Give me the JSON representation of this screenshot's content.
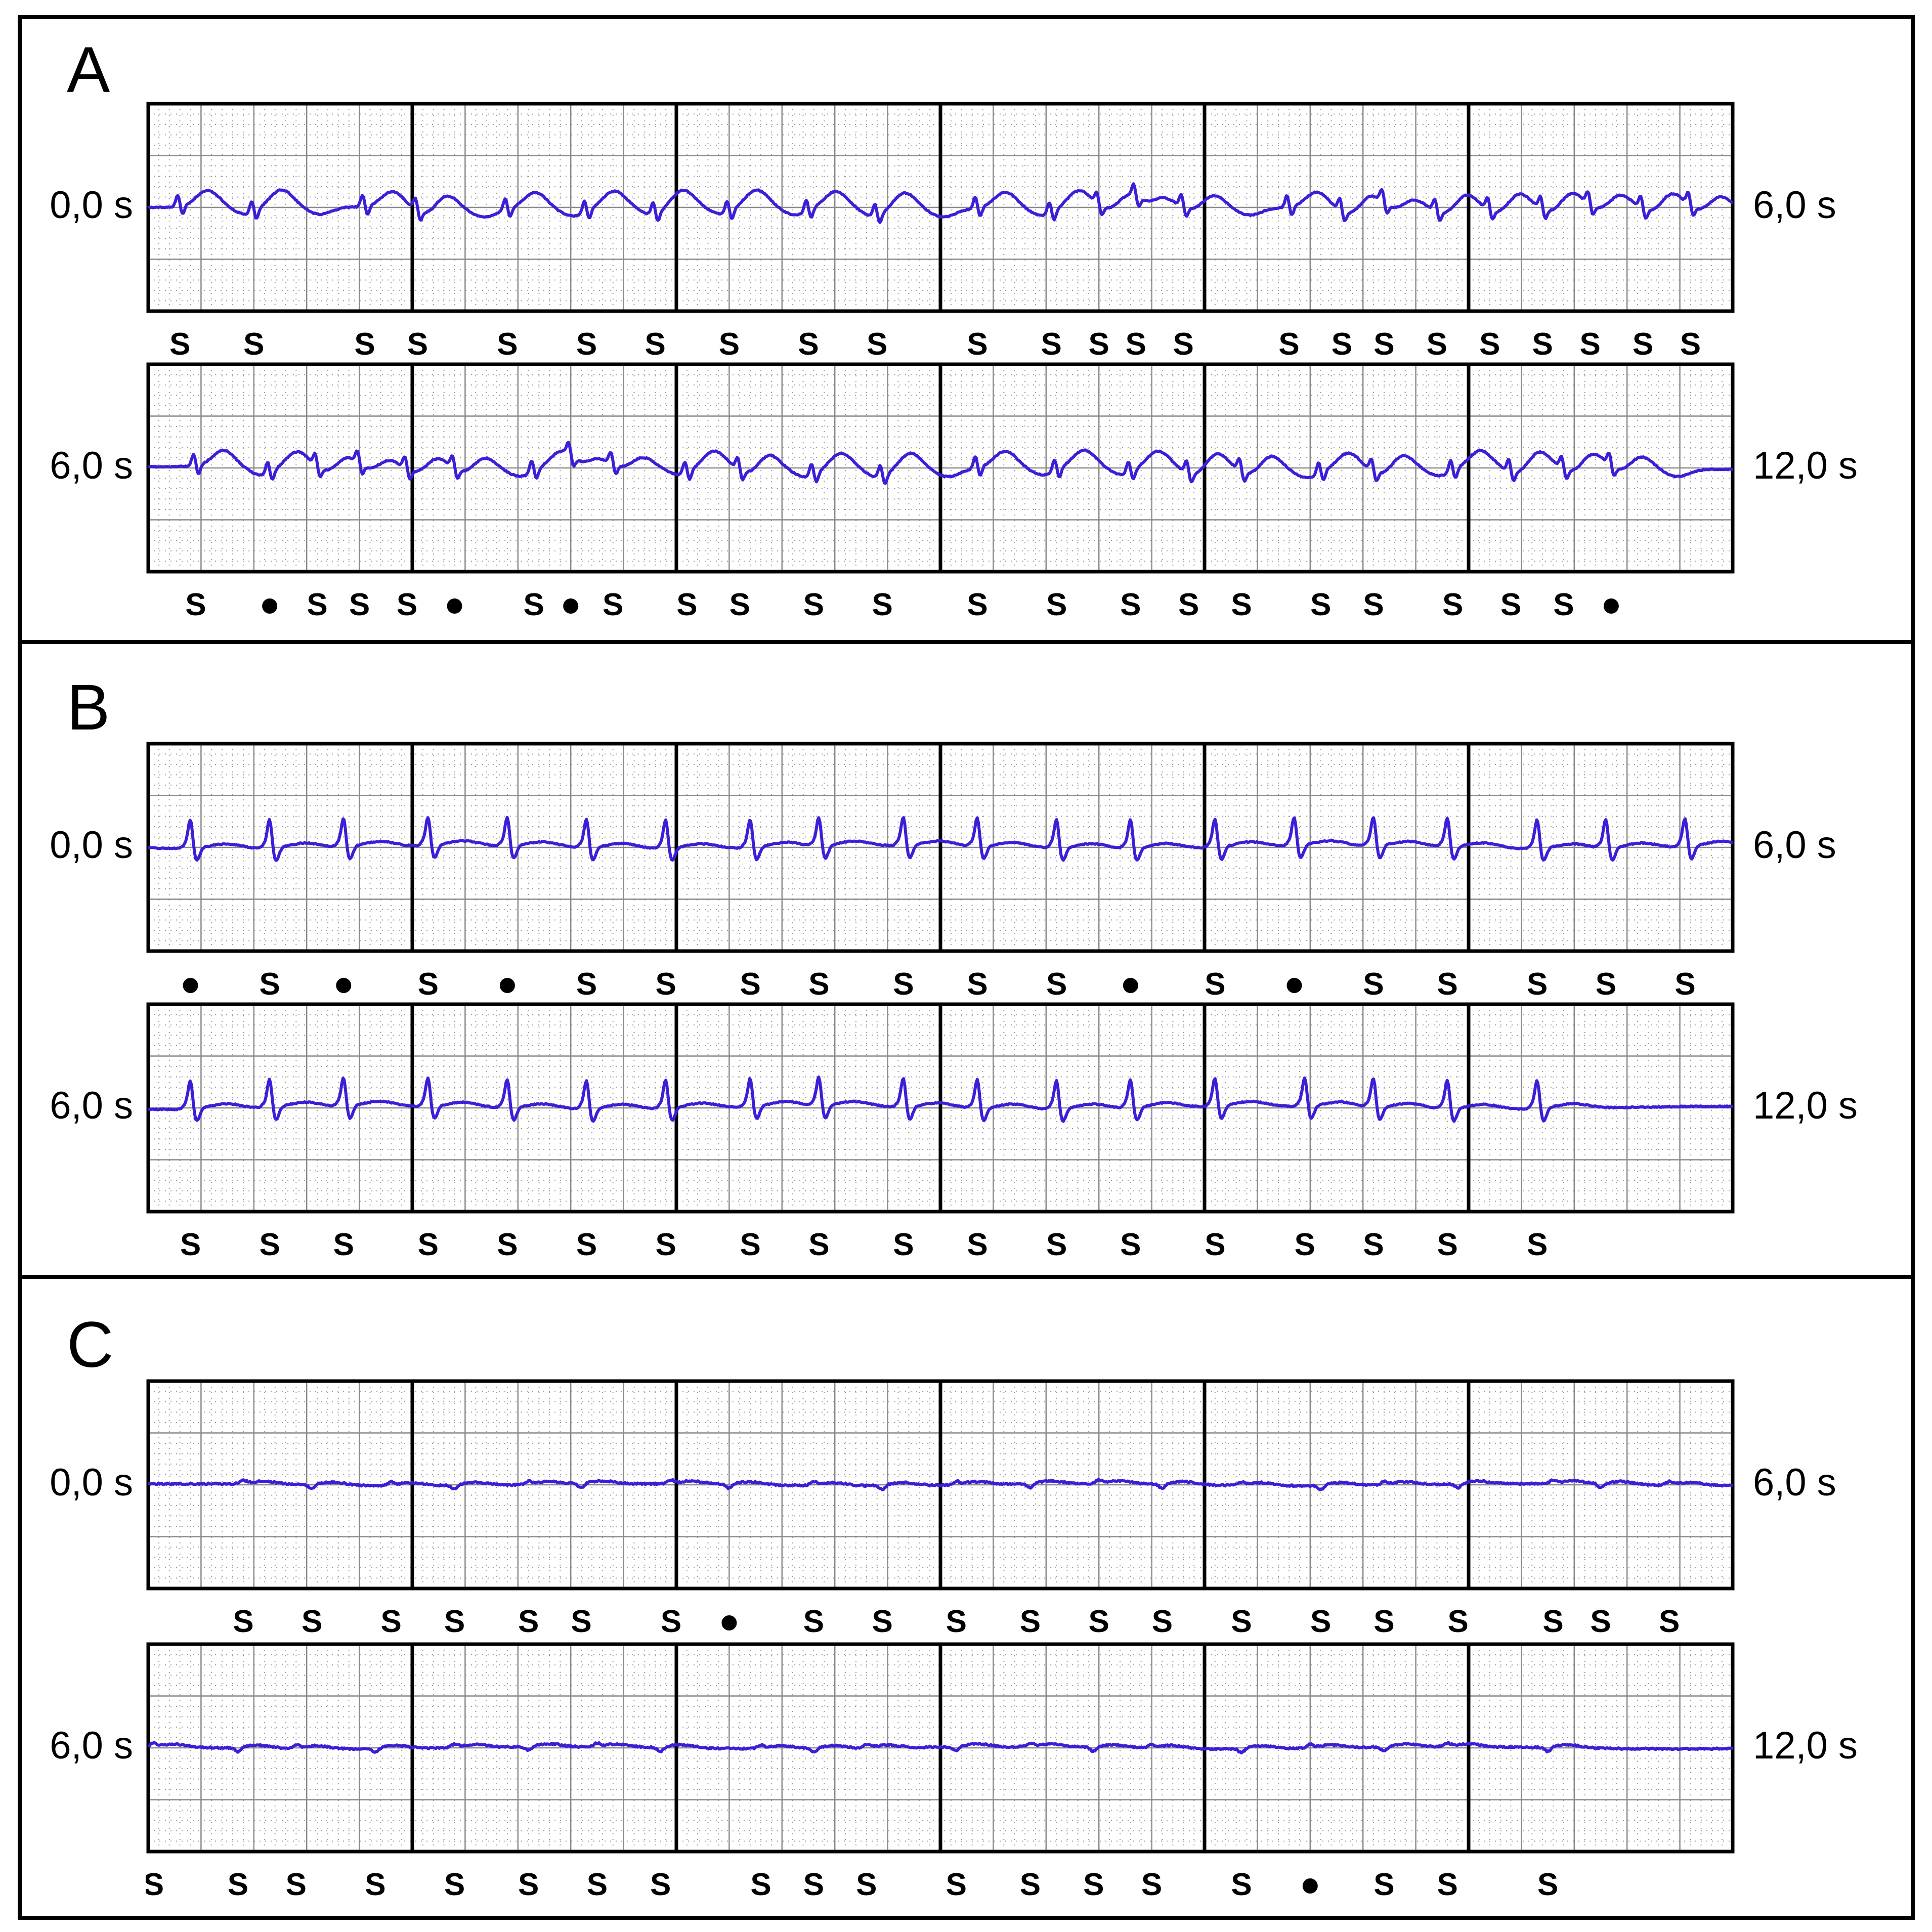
{
  "chart_data": [
    {
      "type": "line",
      "panel": "A",
      "strips": [
        {
          "start_label": "0,0 s",
          "end_label": "6,0 s",
          "x": [
            0,
            6
          ],
          "markers": [
            {
              "t": 0.12,
              "m": "S"
            },
            {
              "t": 0.4,
              "m": "S"
            },
            {
              "t": 0.82,
              "m": "S"
            },
            {
              "t": 1.02,
              "m": "S"
            },
            {
              "t": 1.36,
              "m": "S"
            },
            {
              "t": 1.66,
              "m": "S"
            },
            {
              "t": 1.92,
              "m": "S"
            },
            {
              "t": 2.2,
              "m": "S"
            },
            {
              "t": 2.5,
              "m": "S"
            },
            {
              "t": 2.76,
              "m": "S"
            },
            {
              "t": 3.14,
              "m": "S"
            },
            {
              "t": 3.42,
              "m": "S"
            },
            {
              "t": 3.6,
              "m": "S"
            },
            {
              "t": 3.74,
              "m": "S"
            },
            {
              "t": 3.92,
              "m": "S"
            },
            {
              "t": 4.32,
              "m": "S"
            },
            {
              "t": 4.52,
              "m": "S"
            },
            {
              "t": 4.68,
              "m": "S"
            },
            {
              "t": 4.88,
              "m": "S"
            },
            {
              "t": 5.08,
              "m": "S"
            },
            {
              "t": 5.28,
              "m": "S"
            },
            {
              "t": 5.46,
              "m": "S"
            },
            {
              "t": 5.66,
              "m": "S"
            },
            {
              "t": 5.84,
              "m": "S"
            }
          ]
        },
        {
          "start_label": "6,0 s",
          "end_label": "12,0 s",
          "x": [
            6,
            12
          ],
          "markers": [
            {
              "t": 6.18,
              "m": "S"
            },
            {
              "t": 6.46,
              "m": "•"
            },
            {
              "t": 6.64,
              "m": "S"
            },
            {
              "t": 6.8,
              "m": "S"
            },
            {
              "t": 6.98,
              "m": "S"
            },
            {
              "t": 7.16,
              "m": "•"
            },
            {
              "t": 7.46,
              "m": "S"
            },
            {
              "t": 7.6,
              "m": "•"
            },
            {
              "t": 7.76,
              "m": "S"
            },
            {
              "t": 8.04,
              "m": "S"
            },
            {
              "t": 8.24,
              "m": "S"
            },
            {
              "t": 8.52,
              "m": "S"
            },
            {
              "t": 8.78,
              "m": "S"
            },
            {
              "t": 9.14,
              "m": "S"
            },
            {
              "t": 9.44,
              "m": "S"
            },
            {
              "t": 9.72,
              "m": "S"
            },
            {
              "t": 9.94,
              "m": "S"
            },
            {
              "t": 10.14,
              "m": "S"
            },
            {
              "t": 10.44,
              "m": "S"
            },
            {
              "t": 10.64,
              "m": "S"
            },
            {
              "t": 10.94,
              "m": "S"
            },
            {
              "t": 11.16,
              "m": "S"
            },
            {
              "t": 11.36,
              "m": "S"
            },
            {
              "t": 11.54,
              "m": "•"
            }
          ]
        }
      ]
    },
    {
      "type": "line",
      "panel": "B",
      "strips": [
        {
          "start_label": "0,0 s",
          "end_label": "6,0 s",
          "x": [
            0,
            6
          ],
          "markers": [
            {
              "t": 0.16,
              "m": "•"
            },
            {
              "t": 0.46,
              "m": "S"
            },
            {
              "t": 0.74,
              "m": "•"
            },
            {
              "t": 1.06,
              "m": "S"
            },
            {
              "t": 1.36,
              "m": "•"
            },
            {
              "t": 1.66,
              "m": "S"
            },
            {
              "t": 1.96,
              "m": "S"
            },
            {
              "t": 2.28,
              "m": "S"
            },
            {
              "t": 2.54,
              "m": "S"
            },
            {
              "t": 2.86,
              "m": "S"
            },
            {
              "t": 3.14,
              "m": "S"
            },
            {
              "t": 3.44,
              "m": "S"
            },
            {
              "t": 3.72,
              "m": "•"
            },
            {
              "t": 4.04,
              "m": "S"
            },
            {
              "t": 4.34,
              "m": "•"
            },
            {
              "t": 4.64,
              "m": "S"
            },
            {
              "t": 4.92,
              "m": "S"
            },
            {
              "t": 5.26,
              "m": "S"
            },
            {
              "t": 5.52,
              "m": "S"
            },
            {
              "t": 5.82,
              "m": "S"
            }
          ]
        },
        {
          "start_label": "6,0 s",
          "end_label": "12,0 s",
          "x": [
            6,
            12
          ],
          "markers": [
            {
              "t": 6.16,
              "m": "S"
            },
            {
              "t": 6.46,
              "m": "S"
            },
            {
              "t": 6.74,
              "m": "S"
            },
            {
              "t": 7.06,
              "m": "S"
            },
            {
              "t": 7.36,
              "m": "S"
            },
            {
              "t": 7.66,
              "m": "S"
            },
            {
              "t": 7.96,
              "m": "S"
            },
            {
              "t": 8.28,
              "m": "S"
            },
            {
              "t": 8.54,
              "m": "S"
            },
            {
              "t": 8.86,
              "m": "S"
            },
            {
              "t": 9.14,
              "m": "S"
            },
            {
              "t": 9.44,
              "m": "S"
            },
            {
              "t": 9.72,
              "m": "S"
            },
            {
              "t": 10.04,
              "m": "S"
            },
            {
              "t": 10.38,
              "m": "S"
            },
            {
              "t": 10.64,
              "m": "S"
            },
            {
              "t": 10.92,
              "m": "S"
            },
            {
              "t": 11.26,
              "m": "S"
            }
          ]
        }
      ]
    },
    {
      "type": "line",
      "panel": "C",
      "strips": [
        {
          "start_label": "0,0 s",
          "end_label": "6,0 s",
          "x": [
            0,
            6
          ],
          "markers": [
            {
              "t": 0.36,
              "m": "S"
            },
            {
              "t": 0.62,
              "m": "S"
            },
            {
              "t": 0.92,
              "m": "S"
            },
            {
              "t": 1.16,
              "m": "S"
            },
            {
              "t": 1.44,
              "m": "S"
            },
            {
              "t": 1.64,
              "m": "S"
            },
            {
              "t": 1.98,
              "m": "S"
            },
            {
              "t": 2.2,
              "m": "•"
            },
            {
              "t": 2.52,
              "m": "S"
            },
            {
              "t": 2.78,
              "m": "S"
            },
            {
              "t": 3.06,
              "m": "S"
            },
            {
              "t": 3.34,
              "m": "S"
            },
            {
              "t": 3.6,
              "m": "S"
            },
            {
              "t": 3.84,
              "m": "S"
            },
            {
              "t": 4.14,
              "m": "S"
            },
            {
              "t": 4.44,
              "m": "S"
            },
            {
              "t": 4.68,
              "m": "S"
            },
            {
              "t": 4.96,
              "m": "S"
            },
            {
              "t": 5.32,
              "m": "S"
            },
            {
              "t": 5.5,
              "m": "S"
            },
            {
              "t": 5.76,
              "m": "S"
            }
          ]
        },
        {
          "start_label": "6,0 s",
          "end_label": "12,0 s",
          "x": [
            6,
            12
          ],
          "markers": [
            {
              "t": 6.02,
              "m": "S"
            },
            {
              "t": 6.34,
              "m": "S"
            },
            {
              "t": 6.56,
              "m": "S"
            },
            {
              "t": 6.86,
              "m": "S"
            },
            {
              "t": 7.16,
              "m": "S"
            },
            {
              "t": 7.44,
              "m": "S"
            },
            {
              "t": 7.7,
              "m": "S"
            },
            {
              "t": 7.94,
              "m": "S"
            },
            {
              "t": 8.32,
              "m": "S"
            },
            {
              "t": 8.52,
              "m": "S"
            },
            {
              "t": 8.72,
              "m": "S"
            },
            {
              "t": 9.06,
              "m": "S"
            },
            {
              "t": 9.34,
              "m": "S"
            },
            {
              "t": 9.58,
              "m": "S"
            },
            {
              "t": 9.8,
              "m": "S"
            },
            {
              "t": 10.14,
              "m": "S"
            },
            {
              "t": 10.4,
              "m": "•"
            },
            {
              "t": 10.68,
              "m": "S"
            },
            {
              "t": 10.92,
              "m": "S"
            },
            {
              "t": 11.3,
              "m": "S"
            }
          ]
        }
      ]
    }
  ],
  "colors": {
    "trace": "#3a1fd6",
    "grid_minor": "#9a9a9a",
    "grid_major": "#000000",
    "text": "#000000"
  }
}
